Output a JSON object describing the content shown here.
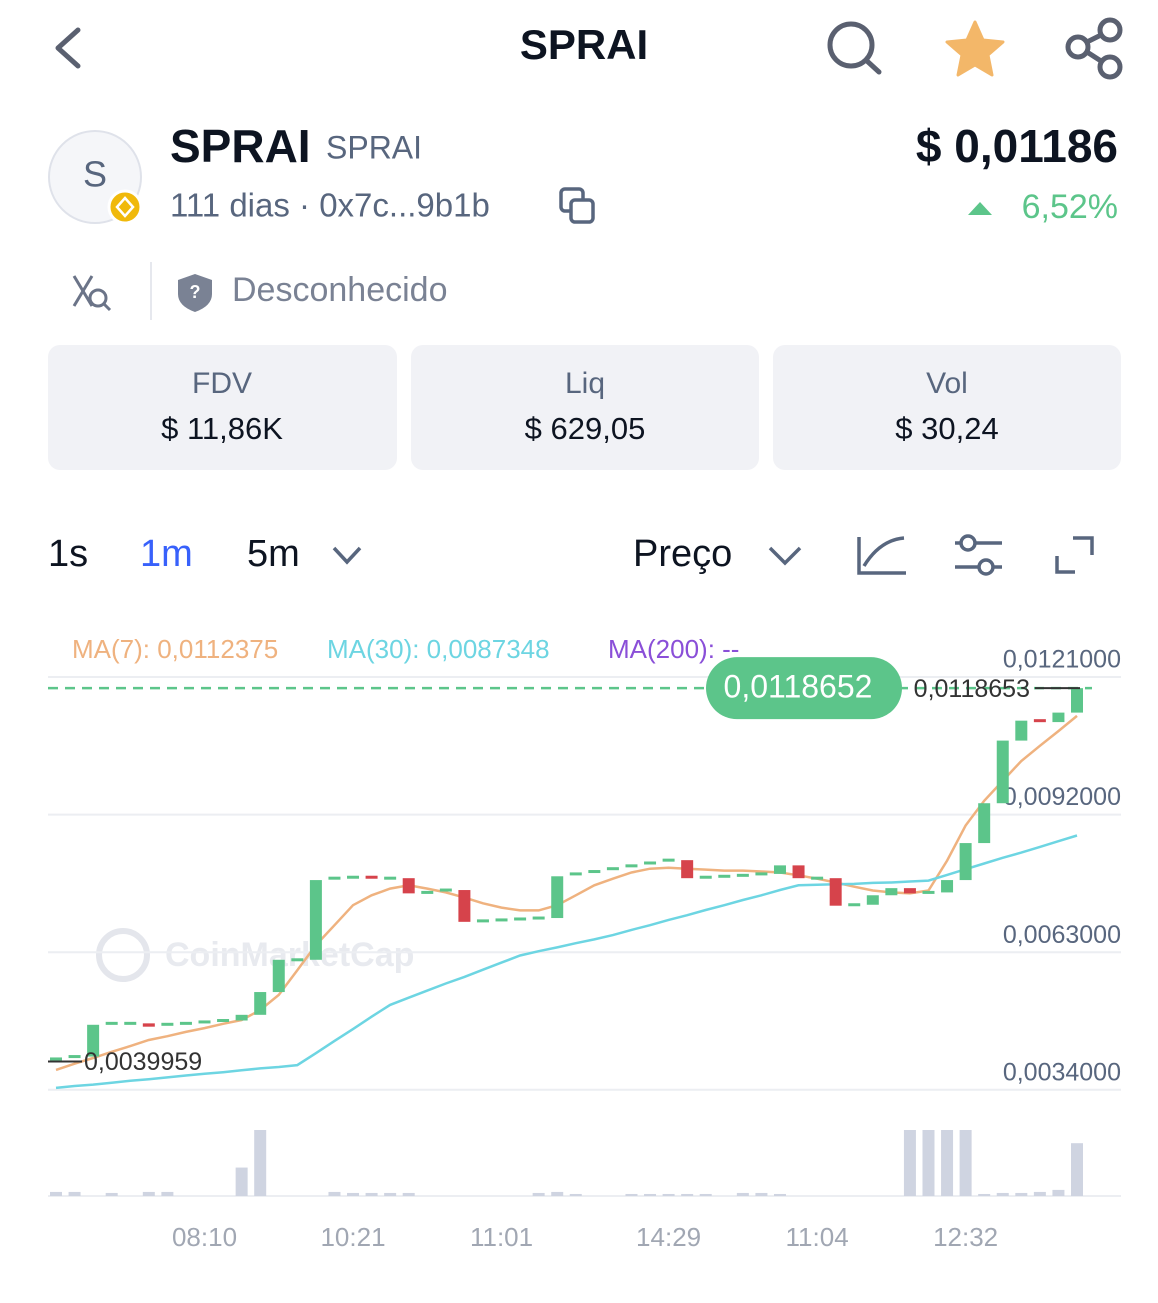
{
  "header": {
    "title": "SPRAI"
  },
  "token": {
    "avatar": "S",
    "name": "SPRAI",
    "symbol": "SPRAI",
    "meta": "111 dias · 0x7c...9b1b",
    "price": "$ 0,01186",
    "change": "6,52%",
    "security": "Desconhecido"
  },
  "stats": [
    {
      "label": "FDV",
      "value": "$ 11,86K"
    },
    {
      "label": "Liq",
      "value": "$ 629,05"
    },
    {
      "label": "Vol",
      "value": "$ 30,24"
    }
  ],
  "timeframes": [
    "1s",
    "1m",
    "5m"
  ],
  "active_timeframe": 1,
  "mode": "Preço",
  "chart_data": {
    "type": "candlestick",
    "watermark": "CoinMarketCap",
    "categories": [
      null,
      null,
      null,
      null,
      null,
      null,
      null,
      null,
      "08:10",
      null,
      null,
      null,
      null,
      null,
      null,
      null,
      "10:21",
      null,
      null,
      null,
      null,
      null,
      null,
      null,
      "11:01",
      null,
      null,
      null,
      null,
      null,
      null,
      null,
      null,
      "14:29",
      null,
      null,
      null,
      null,
      null,
      null,
      null,
      "11:04",
      null,
      null,
      null,
      null,
      null,
      null,
      null,
      "12:32",
      null,
      null,
      null,
      null,
      null,
      null
    ],
    "open": [
      0.004,
      0.00405,
      0.0041,
      0.00477,
      0.0048,
      0.0048,
      0.00473,
      0.00478,
      0.0048,
      0.00483,
      0.00486,
      0.00498,
      0.00546,
      0.00614,
      0.00614,
      0.00782,
      0.00786,
      0.00788,
      0.00784,
      0.00786,
      0.00754,
      0.00756,
      0.00761,
      0.00694,
      0.00696,
      0.00698,
      0.007,
      0.00702,
      0.0079,
      0.00795,
      0.008,
      0.00806,
      0.00812,
      0.00818,
      0.00824,
      0.00786,
      0.00788,
      0.0079,
      0.00792,
      0.00795,
      0.00813,
      0.00786,
      0.00786,
      0.00728,
      0.0073,
      0.0075,
      0.00765,
      0.00754,
      0.00756,
      0.00782,
      0.0086,
      0.00944,
      0.01076,
      0.01118,
      0.01115,
      0.01135
    ],
    "close": [
      0.00405,
      0.0041,
      0.00477,
      0.0048,
      0.0048,
      0.00473,
      0.00478,
      0.0048,
      0.00483,
      0.00486,
      0.00498,
      0.00546,
      0.00614,
      0.00614,
      0.00782,
      0.00786,
      0.00788,
      0.00784,
      0.00786,
      0.00754,
      0.00756,
      0.00761,
      0.00694,
      0.00696,
      0.00698,
      0.007,
      0.00702,
      0.0079,
      0.00795,
      0.008,
      0.00806,
      0.00812,
      0.00818,
      0.00824,
      0.00786,
      0.00788,
      0.0079,
      0.00792,
      0.00795,
      0.00813,
      0.00786,
      0.00786,
      0.00728,
      0.0073,
      0.0075,
      0.00765,
      0.00754,
      0.00756,
      0.00782,
      0.0086,
      0.00944,
      0.01076,
      0.01118,
      0.01115,
      0.01135,
      0.0118652
    ],
    "up_color": "#5cc58a",
    "down_color": "#d6434b",
    "ma": [
      {
        "legend": "MA(7): 0,0112375",
        "color": "#efb27f",
        "values": [
          0.00382,
          0.00395,
          0.00407,
          0.0042,
          0.00432,
          0.00445,
          0.00453,
          0.00462,
          0.0047,
          0.00479,
          0.00487,
          0.00508,
          0.0054,
          0.00592,
          0.00645,
          0.00687,
          0.00729,
          0.0075,
          0.00764,
          0.00771,
          0.00764,
          0.00756,
          0.00745,
          0.00733,
          0.00724,
          0.00718,
          0.00718,
          0.00729,
          0.0075,
          0.00771,
          0.00785,
          0.00798,
          0.00806,
          0.00808,
          0.00806,
          0.00804,
          0.00802,
          0.00802,
          0.008,
          0.00798,
          0.00792,
          0.00785,
          0.00777,
          0.00768,
          0.0076,
          0.00756,
          0.00754,
          0.0076,
          0.00823,
          0.00897,
          0.00949,
          0.00991,
          0.01033,
          0.01065,
          0.01096,
          0.01128
        ]
      },
      {
        "legend": "MA(30): 0,0087348",
        "color": "#6dd5e2",
        "values": [
          0.00344,
          0.00348,
          0.00351,
          0.00355,
          0.00359,
          0.00362,
          0.00366,
          0.0037,
          0.00374,
          0.00377,
          0.00381,
          0.00385,
          0.00388,
          0.00392,
          0.00417,
          0.00443,
          0.00468,
          0.00494,
          0.00519,
          0.00534,
          0.00549,
          0.00564,
          0.00578,
          0.00593,
          0.00608,
          0.00623,
          0.00632,
          0.0064,
          0.00649,
          0.00657,
          0.00666,
          0.00677,
          0.00687,
          0.00698,
          0.00708,
          0.00719,
          0.00729,
          0.0074,
          0.0075,
          0.00761,
          0.00771,
          0.00772,
          0.00773,
          0.00774,
          0.00776,
          0.00777,
          0.00779,
          0.00781,
          0.00793,
          0.00805,
          0.00817,
          0.00829,
          0.0084,
          0.00852,
          0.00864,
          0.00876
        ]
      },
      {
        "legend": "MA(200): --",
        "color": "#8a4fd8",
        "values": []
      }
    ],
    "ylim": [
      0.00329,
      0.01307
    ],
    "yticks": [
      {
        "value": 0.0121,
        "label": "0,0121000"
      },
      {
        "value": 0.0092,
        "label": "0,0092000"
      },
      {
        "value": 0.0063,
        "label": "0,0063000"
      },
      {
        "value": 0.0034,
        "label": "0,0034000"
      }
    ],
    "grid": true,
    "price_line": {
      "value": 0.0118652,
      "label": "0,0118652"
    },
    "high_marker": {
      "value": 0.0118653,
      "label": "0,0118653"
    },
    "low_marker": {
      "value": 0.0039959,
      "label": "0,0039959"
    },
    "volume": [
      4,
      4,
      0,
      3,
      0,
      4,
      4,
      0,
      0,
      0,
      28,
      65,
      0,
      0,
      0,
      4,
      3,
      3,
      3,
      3,
      0,
      0,
      0,
      0,
      0,
      0,
      3,
      4,
      2,
      0,
      0,
      2,
      2,
      2,
      2,
      2,
      0,
      3,
      3,
      2,
      0,
      0,
      0,
      0,
      0,
      0,
      65,
      65,
      65,
      65,
      2,
      3,
      3,
      4,
      6,
      52
    ],
    "volume_lim": [
      0,
      65
    ],
    "volume_color": "#cfd4e1"
  }
}
